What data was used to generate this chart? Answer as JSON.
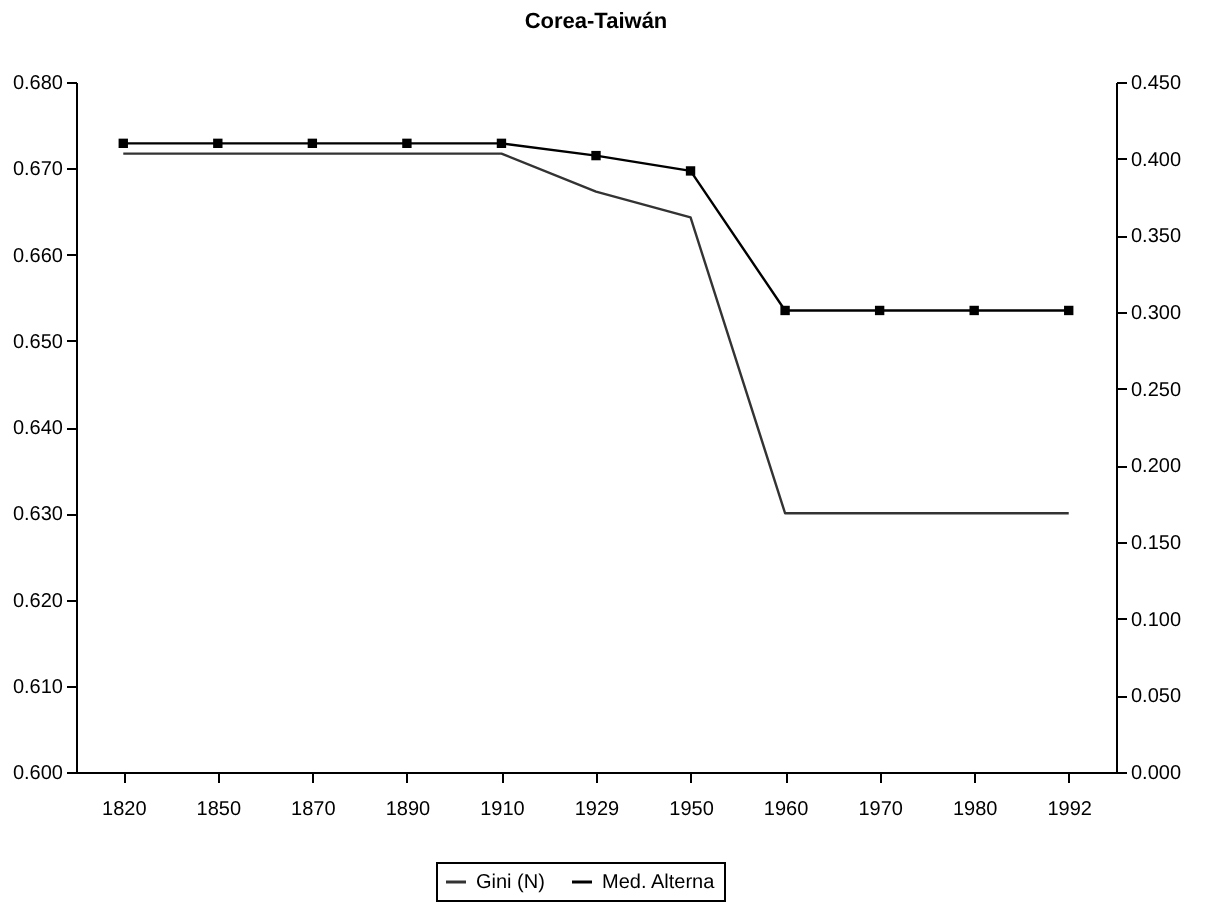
{
  "chart_data": {
    "type": "line",
    "title": "Corea-Taiwán",
    "categories": [
      "1820",
      "1850",
      "1870",
      "1890",
      "1910",
      "1929",
      "1950",
      "1960",
      "1970",
      "1980",
      "1992"
    ],
    "series": [
      {
        "name": "Gini (N)",
        "color": "#333333",
        "marker": "none",
        "values": [
          0.6717,
          0.6717,
          0.6717,
          0.6717,
          0.6717,
          0.6673,
          0.6643,
          0.63,
          0.63,
          0.63,
          0.63
        ]
      },
      {
        "name": "Med. Alterna",
        "color": "#000000",
        "marker": "square",
        "axis": "y2",
        "values": [
          0.41,
          0.41,
          0.41,
          0.41,
          0.41,
          0.402,
          0.392,
          0.301,
          0.301,
          0.301,
          0.301
        ]
      }
    ],
    "ylim": [
      0.6,
      0.68
    ],
    "yticks": [
      {
        "value": 0.6,
        "label": "0.600"
      },
      {
        "value": 0.61,
        "label": "0.610"
      },
      {
        "value": 0.62,
        "label": "0.620"
      },
      {
        "value": 0.63,
        "label": "0.630"
      },
      {
        "value": 0.64,
        "label": "0.640"
      },
      {
        "value": 0.65,
        "label": "0.650"
      },
      {
        "value": 0.66,
        "label": "0.660"
      },
      {
        "value": 0.67,
        "label": "0.670"
      },
      {
        "value": 0.68,
        "label": "0.680"
      }
    ],
    "y2lim": [
      0.0,
      0.45
    ],
    "y2ticks": [
      {
        "value": 0.0,
        "label": "0.000"
      },
      {
        "value": 0.05,
        "label": "0.050"
      },
      {
        "value": 0.1,
        "label": "0.100"
      },
      {
        "value": 0.15,
        "label": "0.150"
      },
      {
        "value": 0.2,
        "label": "0.200"
      },
      {
        "value": 0.25,
        "label": "0.250"
      },
      {
        "value": 0.3,
        "label": "0.300"
      },
      {
        "value": 0.35,
        "label": "0.350"
      },
      {
        "value": 0.4,
        "label": "0.400"
      },
      {
        "value": 0.45,
        "label": "0.450"
      }
    ],
    "grid": false,
    "legend": "bottom"
  }
}
